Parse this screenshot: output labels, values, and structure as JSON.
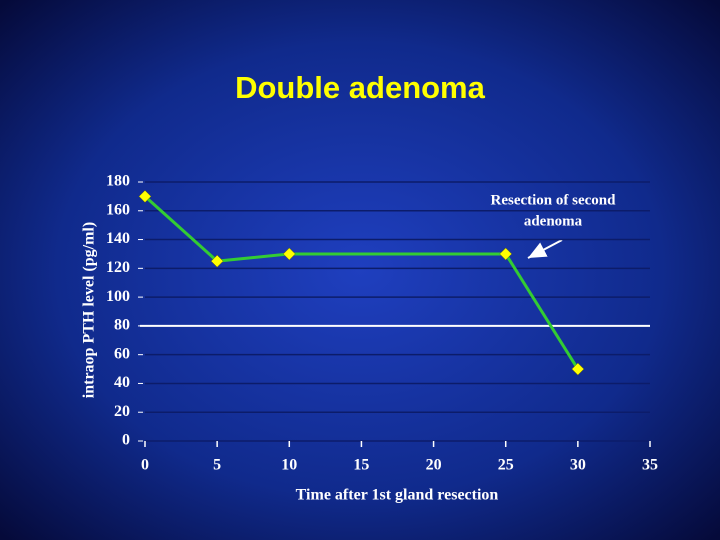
{
  "chart_data": {
    "type": "line",
    "title": "Double adenoma",
    "x_label": "Time after 1st gland resection",
    "y_label": "intraop PTH level (pg/ml)",
    "x": [
      0,
      5,
      10,
      25,
      30
    ],
    "series": [
      {
        "name": "PTH",
        "color": "#33cc33",
        "marker_color": "#ffff00",
        "values": [
          170,
          125,
          130,
          130,
          50
        ]
      }
    ],
    "xlim": [
      0,
      35
    ],
    "xticks": [
      0,
      5,
      10,
      15,
      20,
      25,
      30,
      35
    ],
    "ylim": [
      0,
      180
    ],
    "yticks": [
      0,
      20,
      40,
      60,
      80,
      100,
      120,
      140,
      160,
      180
    ],
    "grid": true,
    "reference_line": {
      "value": 80,
      "color": "#ffffff"
    },
    "annotation": [
      "Resection of second",
      "adenoma"
    ]
  }
}
